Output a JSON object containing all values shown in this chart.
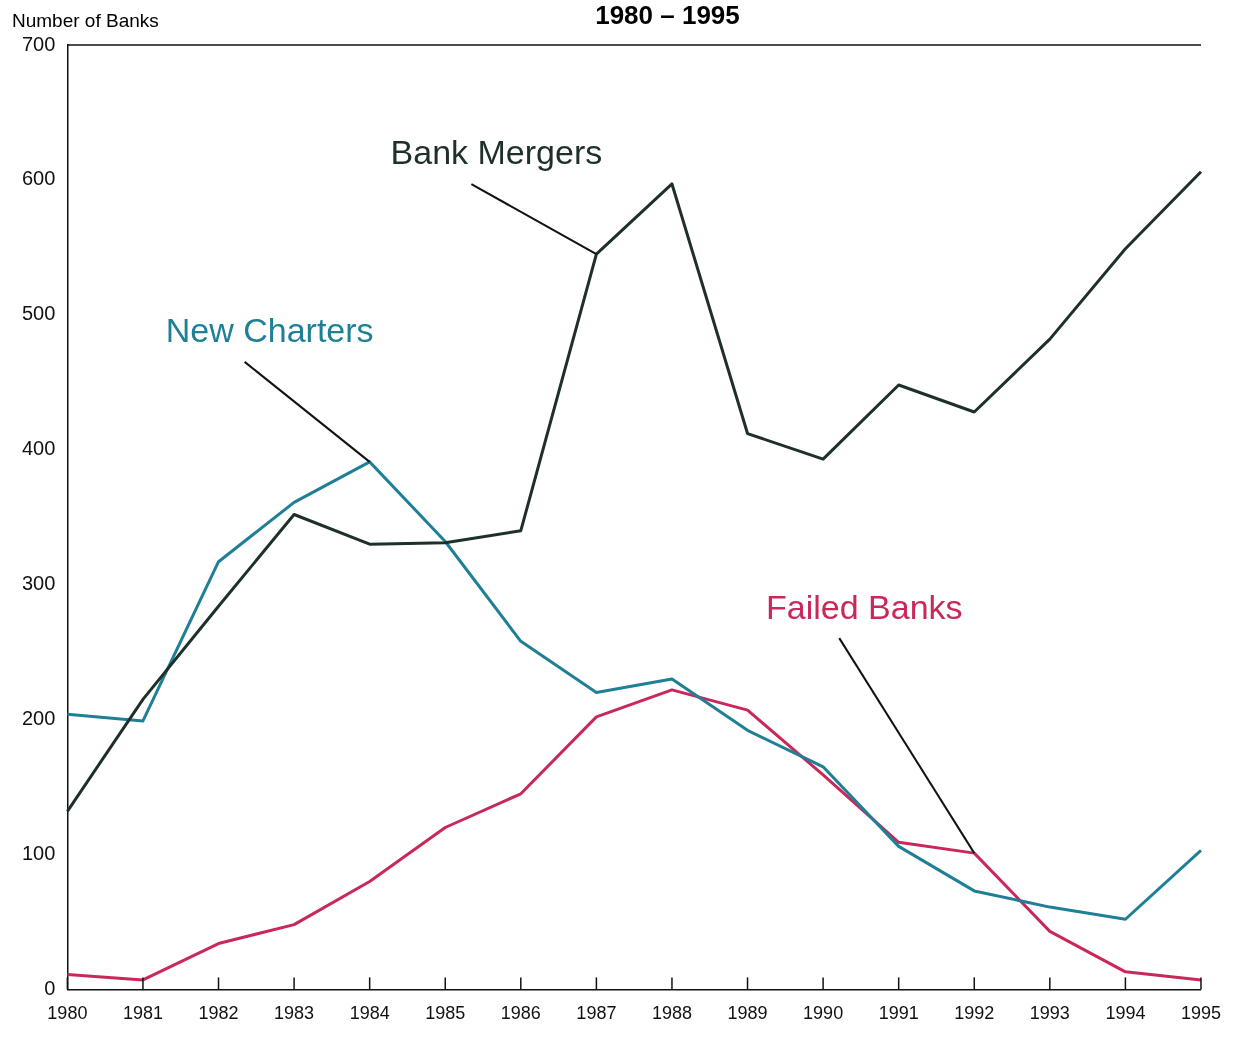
{
  "chart_data": {
    "type": "line",
    "title": "1980 – 1995",
    "ylabel": "Number of Banks",
    "categories": [
      "1980",
      "1981",
      "1982",
      "1983",
      "1984",
      "1985",
      "1986",
      "1987",
      "1988",
      "1989",
      "1990",
      "1991",
      "1992",
      "1993",
      "1994",
      "1995"
    ],
    "series": [
      {
        "color": "#1f2f2a",
        "values": [
          132,
          215,
          284,
          352,
          330,
          331,
          340,
          545,
          597,
          412,
          393,
          448,
          428,
          482,
          549,
          606
        ]
      },
      {
        "color": "#1e7f96",
        "values": [
          204,
          199,
          317,
          361,
          391,
          332,
          258,
          220,
          230,
          192,
          165,
          106,
          73,
          61,
          52,
          103
        ]
      },
      {
        "color": "#c8285a",
        "values": [
          11,
          7,
          34,
          48,
          80,
          120,
          145,
          202,
          222,
          207,
          159,
          109,
          101,
          43,
          13,
          7
        ]
      }
    ],
    "annotations": [
      {
        "text": "Bank Mergers",
        "x": "1987",
        "y": 545
      },
      {
        "text": "New Charters",
        "x": "1984",
        "y": 391
      },
      {
        "text": "Failed Banks",
        "x": "1992",
        "y": 101
      }
    ],
    "ylim": [
      0,
      700
    ],
    "yticks": [
      0,
      100,
      200,
      300,
      400,
      500,
      600,
      700
    ],
    "grid": false,
    "legend": false,
    "marker": "none",
    "line_style": "solid"
  }
}
